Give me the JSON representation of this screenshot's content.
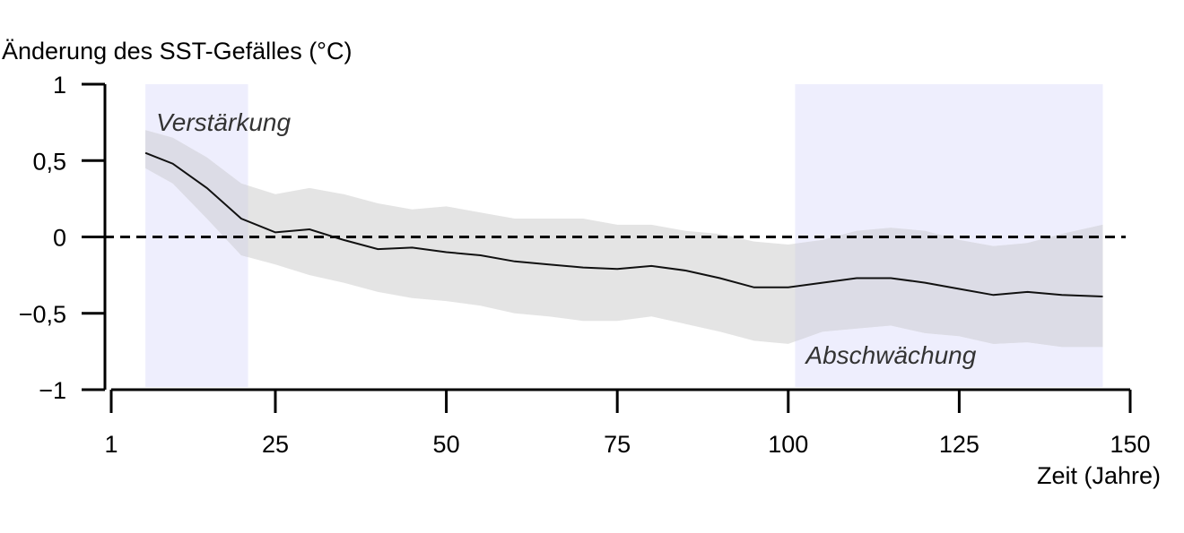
{
  "chart_data": {
    "type": "line",
    "title": "",
    "ylabel": "Änderung des SST-Gefälles (°C)",
    "xlabel": "Zeit (Jahre)",
    "xlim": [
      1,
      150
    ],
    "ylim": [
      -1,
      1
    ],
    "x_ticks": [
      1,
      25,
      50,
      75,
      100,
      125,
      150
    ],
    "x_tick_labels": [
      "1",
      "25",
      "50",
      "75",
      "100",
      "125",
      "150"
    ],
    "y_ticks": [
      1,
      0.5,
      0,
      -0.5,
      -1
    ],
    "y_tick_labels": [
      "1",
      "0,5",
      "0",
      "−0,5",
      "−1"
    ],
    "reference_line": {
      "y": 0,
      "style": "dashed"
    },
    "shaded_periods": [
      {
        "label": "Verstärkung",
        "x_start": 6,
        "x_end": 21,
        "label_position": "top"
      },
      {
        "label": "Abschwächung",
        "x_start": 101,
        "x_end": 146,
        "label_position": "bottom"
      }
    ],
    "series": [
      {
        "type": "line",
        "x": [
          6,
          10,
          15,
          20,
          25,
          30,
          35,
          40,
          45,
          50,
          55,
          60,
          65,
          70,
          75,
          80,
          85,
          90,
          95,
          100,
          105,
          110,
          115,
          120,
          125,
          130,
          135,
          140,
          146
        ],
        "y": [
          0.55,
          0.48,
          0.32,
          0.12,
          0.03,
          0.05,
          -0.02,
          -0.08,
          -0.07,
          -0.1,
          -0.12,
          -0.16,
          -0.18,
          -0.2,
          -0.21,
          -0.19,
          -0.22,
          -0.27,
          -0.33,
          -0.33,
          -0.3,
          -0.27,
          -0.27,
          -0.3,
          -0.34,
          -0.38,
          -0.36,
          -0.38,
          -0.39
        ]
      },
      {
        "type": "band",
        "x": [
          6,
          10,
          15,
          20,
          25,
          30,
          35,
          40,
          45,
          50,
          55,
          60,
          65,
          70,
          75,
          80,
          85,
          90,
          95,
          100,
          105,
          110,
          115,
          120,
          125,
          130,
          135,
          140,
          146
        ],
        "upper": [
          0.7,
          0.65,
          0.52,
          0.35,
          0.28,
          0.32,
          0.28,
          0.22,
          0.18,
          0.2,
          0.16,
          0.12,
          0.12,
          0.12,
          0.08,
          0.08,
          0.04,
          0.02,
          -0.03,
          -0.05,
          -0.02,
          0.04,
          0.06,
          0.04,
          -0.02,
          -0.06,
          -0.04,
          0.02,
          0.08
        ],
        "lower": [
          0.45,
          0.35,
          0.12,
          -0.12,
          -0.18,
          -0.25,
          -0.3,
          -0.36,
          -0.4,
          -0.42,
          -0.45,
          -0.5,
          -0.52,
          -0.55,
          -0.55,
          -0.52,
          -0.57,
          -0.62,
          -0.68,
          -0.7,
          -0.62,
          -0.6,
          -0.58,
          -0.63,
          -0.65,
          -0.7,
          -0.69,
          -0.72,
          -0.72
        ]
      }
    ],
    "colors": {
      "band": "#e3e3e3",
      "period": "#eeeefd",
      "overlap": "#dcdce6",
      "line": "#111111"
    }
  }
}
